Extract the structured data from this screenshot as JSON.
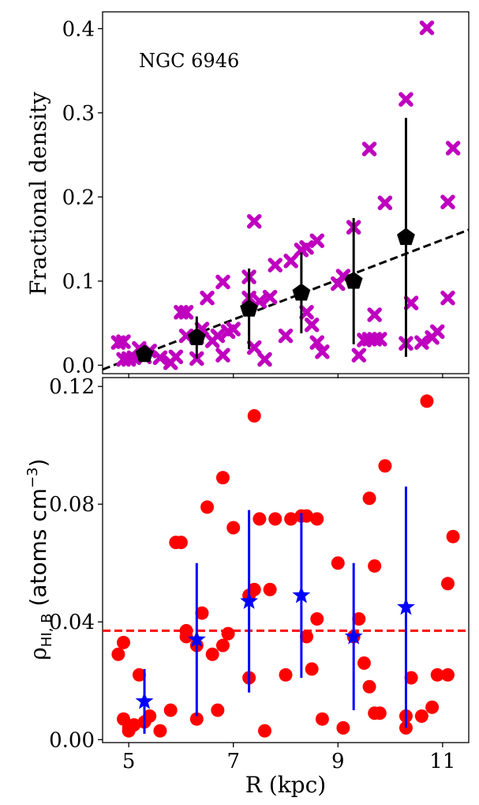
{
  "chart_data": [
    {
      "type": "scatter",
      "panel": "top",
      "annotation": "NGC 6946",
      "ylabel": "Fractional density",
      "xlabel": "",
      "xlim": [
        4.5,
        11.5
      ],
      "ylim": [
        -0.01,
        0.42
      ],
      "yticks": [
        0.0,
        0.1,
        0.2,
        0.3,
        0.4
      ],
      "ytick_labels": [
        "0.0",
        "0.1",
        "0.2",
        "0.3",
        "0.4"
      ],
      "grid": false,
      "colors": {
        "points": "#bf00bf",
        "binned": "#000000",
        "fit": "#000000"
      },
      "series": [
        {
          "name": "individual",
          "marker": "x-thick",
          "x": [
            4.8,
            4.9,
            4.9,
            5.0,
            5.0,
            5.1,
            5.2,
            5.3,
            5.4,
            5.6,
            5.8,
            5.9,
            6.0,
            6.1,
            6.1,
            6.3,
            6.3,
            6.4,
            6.5,
            6.6,
            6.7,
            6.8,
            6.8,
            6.9,
            7.0,
            7.3,
            7.3,
            7.4,
            7.4,
            7.5,
            7.6,
            7.7,
            7.8,
            8.0,
            8.1,
            8.3,
            8.4,
            8.4,
            8.5,
            8.6,
            8.6,
            8.7,
            9.0,
            9.1,
            9.3,
            9.4,
            9.5,
            9.6,
            9.6,
            9.7,
            9.7,
            9.8,
            9.9,
            10.3,
            10.3,
            10.4,
            10.6,
            10.7,
            10.8,
            10.9,
            11.1,
            11.1,
            11.2
          ],
          "y": [
            0.027,
            0.007,
            0.028,
            0.007,
            0.008,
            0.009,
            0.02,
            0.01,
            0.017,
            0.009,
            0.003,
            0.01,
            0.063,
            0.063,
            0.035,
            0.033,
            0.008,
            0.043,
            0.08,
            0.029,
            0.035,
            0.099,
            0.012,
            0.04,
            0.043,
            0.105,
            0.08,
            0.171,
            0.021,
            0.076,
            0.007,
            0.081,
            0.119,
            0.035,
            0.124,
            0.137,
            0.063,
            0.14,
            0.048,
            0.148,
            0.027,
            0.016,
            0.097,
            0.106,
            0.164,
            0.012,
            0.03,
            0.257,
            0.031,
            0.06,
            0.031,
            0.031,
            0.193,
            0.316,
            0.026,
            0.074,
            0.027,
            0.401,
            0.033,
            0.04,
            0.194,
            0.08,
            0.258
          ]
        },
        {
          "name": "binned",
          "marker": "pentagon",
          "x": [
            5.3,
            6.3,
            7.3,
            8.3,
            9.3,
            10.3
          ],
          "y": [
            0.013,
            0.033,
            0.067,
            0.086,
            0.1,
            0.152
          ],
          "yerr": [
            0.008,
            0.025,
            0.048,
            0.048,
            0.075,
            0.142
          ]
        },
        {
          "name": "fit",
          "style": "dashed",
          "x": [
            4.5,
            11.5
          ],
          "y": [
            -0.005,
            0.161
          ]
        }
      ]
    },
    {
      "type": "scatter",
      "panel": "bottom",
      "ylabel": "ρHI,B (atoms cm−3)",
      "ylabel_parts": {
        "rho": "ρ",
        "sub": "HI, B",
        "pre": " (atoms cm",
        "sup": "−3",
        "post": ")"
      },
      "xlabel": "R (kpc)",
      "xlim": [
        4.5,
        11.5
      ],
      "ylim": [
        -0.001,
        0.123
      ],
      "yticks": [
        0.0,
        0.04,
        0.08,
        0.12
      ],
      "ytick_labels": [
        "0.00",
        "0.04",
        "0.08",
        "0.12"
      ],
      "xticks": [
        5,
        7,
        9,
        11
      ],
      "xtick_labels": [
        "5",
        "7",
        "9",
        "11"
      ],
      "grid": false,
      "colors": {
        "points": "#ff0000",
        "binned": "#0000ff",
        "mean": "#ff0000"
      },
      "series": [
        {
          "name": "individual",
          "marker": "circle",
          "x": [
            4.8,
            4.9,
            4.9,
            5.0,
            5.0,
            5.1,
            5.2,
            5.3,
            5.4,
            5.6,
            5.8,
            5.9,
            6.0,
            6.1,
            6.1,
            6.3,
            6.3,
            6.4,
            6.5,
            6.6,
            6.7,
            6.8,
            6.8,
            6.9,
            7.0,
            7.3,
            7.3,
            7.4,
            7.4,
            7.5,
            7.6,
            7.7,
            7.8,
            8.0,
            8.1,
            8.3,
            8.4,
            8.4,
            8.5,
            8.6,
            8.6,
            8.7,
            9.0,
            9.1,
            9.3,
            9.4,
            9.5,
            9.6,
            9.6,
            9.7,
            9.7,
            9.8,
            9.9,
            10.3,
            10.3,
            10.4,
            10.6,
            10.7,
            10.8,
            10.9,
            11.1,
            11.1,
            11.2
          ],
          "y": [
            0.029,
            0.033,
            0.007,
            0.003,
            0.004,
            0.005,
            0.022,
            0.006,
            0.008,
            0.003,
            0.01,
            0.067,
            0.067,
            0.037,
            0.035,
            0.032,
            0.007,
            0.043,
            0.079,
            0.029,
            0.01,
            0.089,
            0.032,
            0.036,
            0.072,
            0.049,
            0.021,
            0.11,
            0.051,
            0.075,
            0.003,
            0.051,
            0.075,
            0.022,
            0.075,
            0.076,
            0.035,
            0.076,
            0.024,
            0.075,
            0.041,
            0.007,
            0.06,
            0.004,
            0.035,
            0.041,
            0.026,
            0.082,
            0.018,
            0.009,
            0.059,
            0.009,
            0.093,
            0.008,
            0.004,
            0.021,
            0.008,
            0.115,
            0.011,
            0.022,
            0.053,
            0.022,
            0.069
          ]
        },
        {
          "name": "binned",
          "marker": "star",
          "x": [
            5.3,
            6.3,
            7.3,
            8.3,
            9.3,
            10.3
          ],
          "y": [
            0.013,
            0.034,
            0.047,
            0.049,
            0.035,
            0.045
          ],
          "yerr": [
            0.011,
            0.026,
            0.031,
            0.028,
            0.025,
            0.041
          ]
        },
        {
          "name": "mean",
          "style": "dashed-horizontal",
          "y": 0.037
        }
      ]
    }
  ]
}
